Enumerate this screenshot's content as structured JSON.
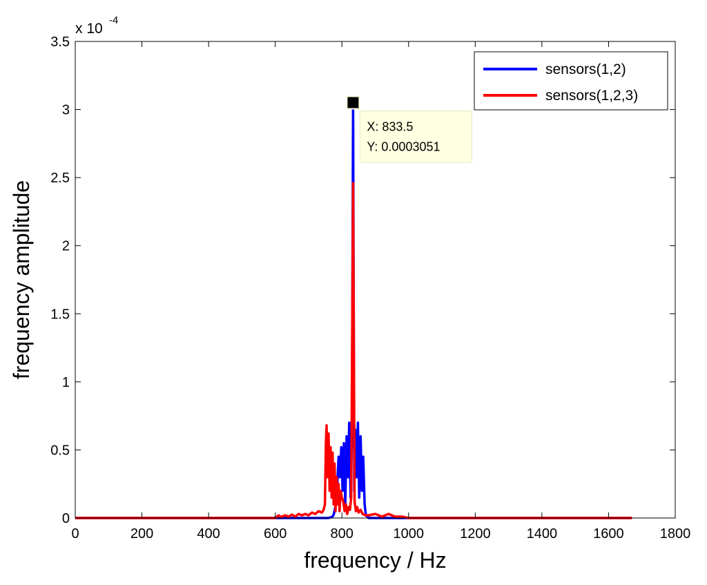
{
  "chart_data": {
    "type": "line",
    "xlabel": "frequency / Hz",
    "ylabel": "frequency amplitude",
    "xlim": [
      0,
      1800
    ],
    "ylim": [
      0,
      3.5
    ],
    "y_scale_prefix": "x 10",
    "y_scale_exponent": "-4",
    "grid": false,
    "legend_position": "top-right",
    "x_ticks": [
      "0",
      "200",
      "400",
      "600",
      "800",
      "1000",
      "1200",
      "1400",
      "1600",
      "1800"
    ],
    "y_ticks": [
      "0",
      "0.5",
      "1",
      "1.5",
      "2",
      "2.5",
      "3",
      "3.5"
    ],
    "series": [
      {
        "name": "sensors(1,2)",
        "color": "#0000ff",
        "x": [
          0,
          600,
          740,
          760,
          772,
          776,
          782,
          786,
          790,
          794,
          798,
          802,
          806,
          810,
          814,
          818,
          822,
          826,
          830,
          833.5,
          837,
          840,
          844,
          848,
          852,
          856,
          860,
          864,
          868,
          872,
          876,
          880,
          900,
          940,
          980,
          1670
        ],
        "y": [
          0,
          0,
          0,
          0,
          0.01,
          0.03,
          0.1,
          0.25,
          0.45,
          0.3,
          0.52,
          0.2,
          0.55,
          0.1,
          0.6,
          0.3,
          0.7,
          0.15,
          0.6,
          3.051,
          0.2,
          0.65,
          0.3,
          0.7,
          0.15,
          0.6,
          0.2,
          0.45,
          0.1,
          0.02,
          0.01,
          0,
          0,
          0,
          0,
          0
        ]
      },
      {
        "name": "sensors(1,2,3)",
        "color": "#ff0000",
        "x": [
          0,
          600,
          610,
          615,
          620,
          630,
          640,
          650,
          660,
          670,
          680,
          690,
          700,
          710,
          720,
          730,
          740,
          745,
          749,
          752,
          754,
          757,
          760,
          763,
          766,
          769,
          772,
          775,
          778,
          781,
          784,
          787,
          790,
          793,
          796,
          800,
          804,
          808,
          812,
          816,
          820,
          824,
          828,
          833.5,
          838,
          842,
          846,
          850,
          856,
          862,
          870,
          880,
          900,
          920,
          940,
          950,
          960,
          980,
          1000,
          1670
        ],
        "y": [
          0,
          0,
          0.02,
          0.01,
          0.01,
          0.02,
          0.01,
          0.025,
          0.01,
          0.03,
          0.02,
          0.03,
          0.02,
          0.04,
          0.03,
          0.05,
          0.04,
          0.06,
          0.1,
          0.55,
          0.68,
          0.3,
          0.62,
          0.2,
          0.52,
          0.15,
          0.48,
          0.1,
          0.4,
          0.05,
          0.3,
          0.1,
          0.25,
          0.05,
          0.2,
          0.15,
          0.12,
          0.05,
          0.1,
          0.03,
          0.08,
          0.06,
          0.15,
          2.46,
          0.12,
          0.05,
          0.08,
          0.04,
          0.06,
          0.03,
          0.02,
          0.02,
          0.03,
          0.01,
          0.03,
          0.02,
          0.01,
          0.01,
          0,
          0
        ]
      }
    ],
    "datatip": {
      "x_label": "X: 833.5",
      "y_label": "Y: 0.0003051",
      "x": 833.5,
      "y": 3.051
    }
  }
}
